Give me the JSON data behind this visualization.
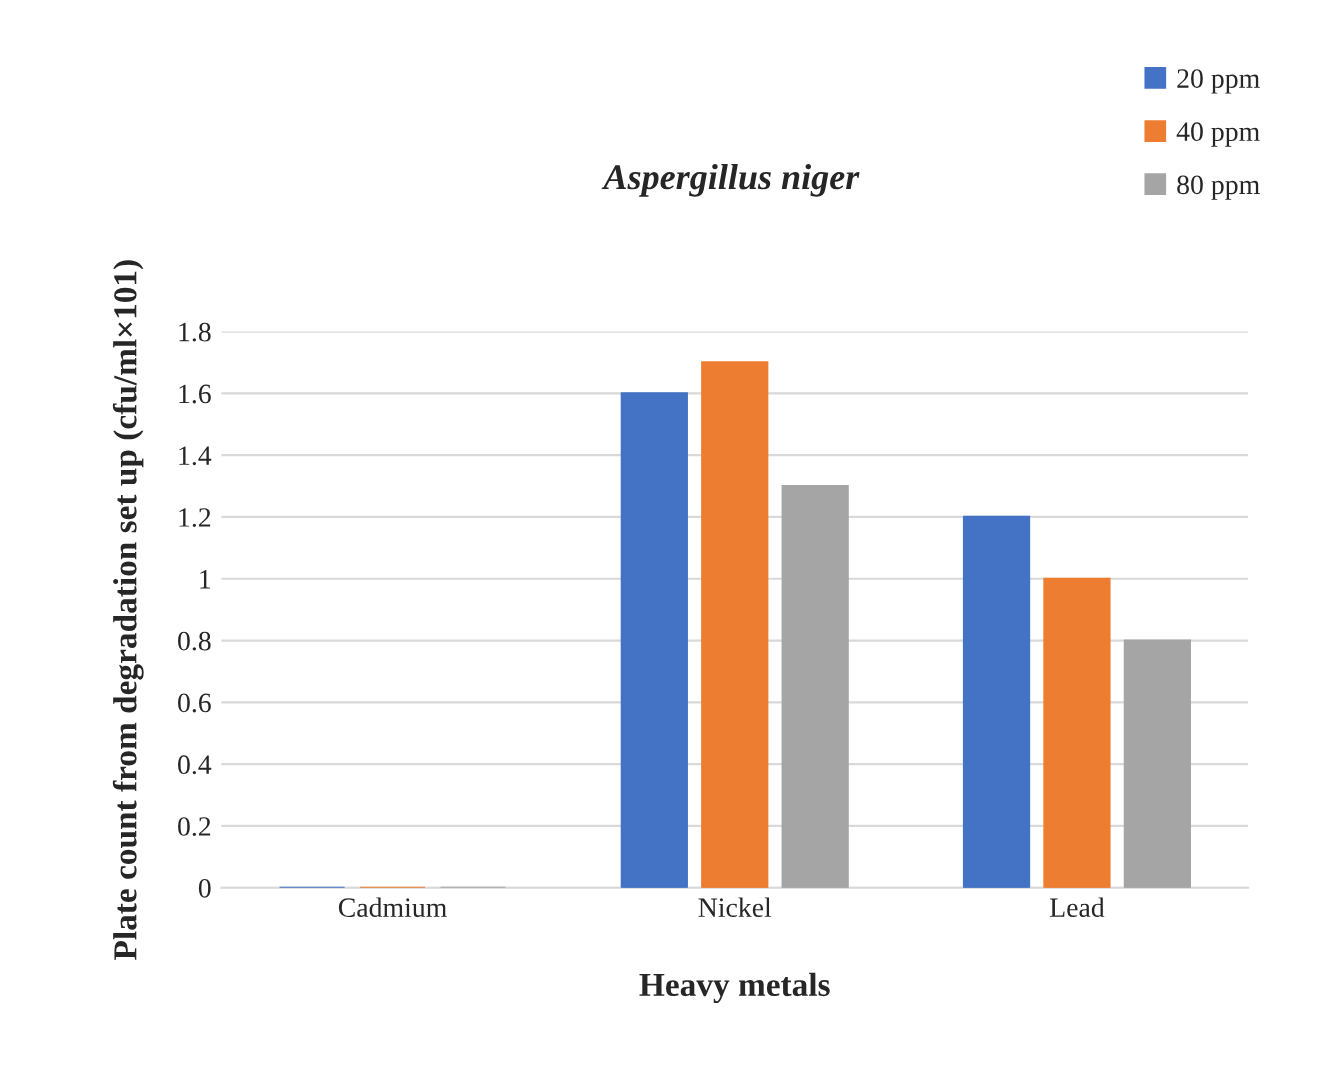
{
  "chart_data": {
    "type": "bar",
    "title": "Aspergillus niger",
    "xlabel": "Heavy metals",
    "ylabel": "Plate count from degradation set up (cfu/ml×101)",
    "categories": [
      "Cadmium",
      "Nickel",
      "Lead"
    ],
    "series": [
      {
        "name": "20 ppm",
        "color": "#4472c4",
        "values": [
          0,
          1.6,
          1.2
        ]
      },
      {
        "name": "40 ppm",
        "color": "#ed7d31",
        "values": [
          0,
          1.7,
          1.0
        ]
      },
      {
        "name": "80 ppm",
        "color": "#a5a5a5",
        "values": [
          0,
          1.3,
          0.8
        ]
      }
    ],
    "ylim": [
      0,
      1.8
    ],
    "yticks": [
      0,
      {
        "value": 0.2,
        "label": "0.2"
      },
      {
        "value": 0.4,
        "label": "0.4"
      },
      {
        "value": 0.6,
        "label": "0.6"
      },
      {
        "value": 0.8,
        "label": "0.8"
      },
      1,
      {
        "value": 1.2,
        "label": "1.2"
      },
      {
        "value": 1.4,
        "label": "1.4"
      },
      {
        "value": 1.6,
        "label": "1.6"
      },
      {
        "value": 1.8,
        "label": "1.8"
      }
    ],
    "grid": "y",
    "legend": "top right"
  }
}
